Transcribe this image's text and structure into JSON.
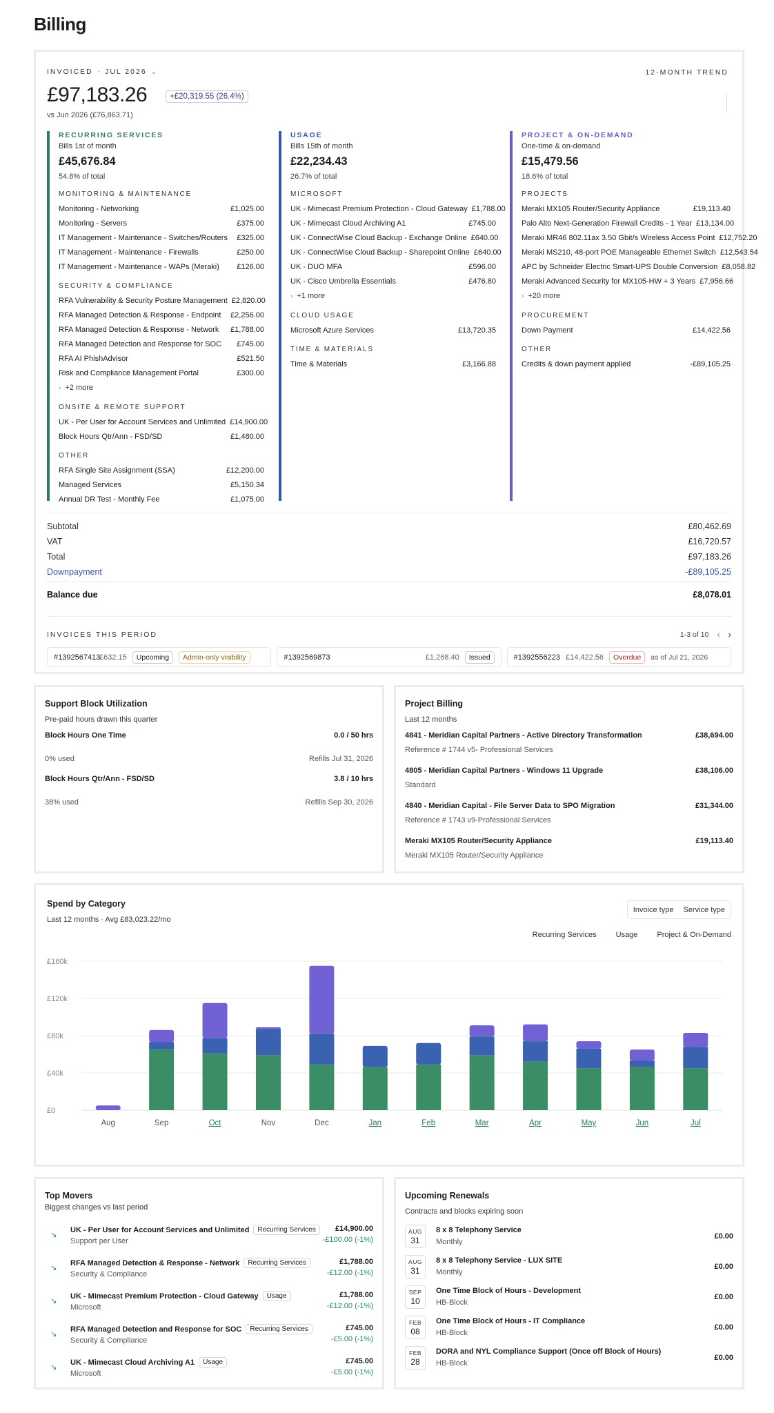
{
  "page_title": "Billing",
  "invoiced": {
    "label": "INVOICED",
    "period": "JUL 2026",
    "trend_label": "12-MONTH TREND",
    "amount": "£97,183.26",
    "delta": "+£20,319.55 (26.4%)",
    "vs": "vs Jun 2026 (£76,863.71)"
  },
  "columns": [
    {
      "title": "RECURRING SERVICES",
      "color": "#2e7d5b",
      "sub": "Bills 1st of month",
      "amount": "£45,676.84",
      "pct": "54.8% of total",
      "sections": [
        {
          "name": "MONITORING & MAINTENANCE",
          "items": [
            [
              "Monitoring - Networking",
              "£1,025.00"
            ],
            [
              "Monitoring - Servers",
              "£375.00"
            ],
            [
              "IT Management - Maintenance - Switches/Routers",
              "£325.00"
            ],
            [
              "IT Management - Maintenance - Firewalls",
              "£250.00"
            ],
            [
              "IT Management - Maintenance - WAPs (Meraki)",
              "£126.00"
            ]
          ]
        },
        {
          "name": "SECURITY & COMPLIANCE",
          "items": [
            [
              "RFA Vulnerability & Security Posture Management",
              "£2,820.00"
            ],
            [
              "RFA Managed Detection & Response - Endpoint",
              "£2,256.00"
            ],
            [
              "RFA Managed Detection & Response - Network",
              "£1,788.00"
            ],
            [
              "RFA Managed Detection and Response for SOC",
              "£745.00"
            ],
            [
              "RFA AI PhishAdvisor",
              "£521.50"
            ],
            [
              "Risk and Compliance Management Portal",
              "£300.00"
            ]
          ],
          "more": "+2 more"
        },
        {
          "name": "ONSITE & REMOTE SUPPORT",
          "items": [
            [
              "UK - Per User for Account Services and Unlimited",
              "£14,900.00"
            ],
            [
              "Block Hours Qtr/Ann - FSD/SD",
              "£1,480.00"
            ]
          ]
        },
        {
          "name": "OTHER",
          "items": [
            [
              "RFA Single Site Assignment (SSA)",
              "£12,200.00"
            ],
            [
              "Managed Services",
              "£5,150.34"
            ],
            [
              "Annual DR Test - Monthly Fee",
              "£1,075.00"
            ]
          ]
        }
      ]
    },
    {
      "title": "USAGE",
      "color": "#3257a8",
      "sub": "Bills 15th of month",
      "amount": "£22,234.43",
      "pct": "26.7% of total",
      "sections": [
        {
          "name": "MICROSOFT",
          "items": [
            [
              "UK - Mimecast Premium Protection - Cloud Gateway",
              "£1,788.00"
            ],
            [
              "UK - Mimecast Cloud Archiving A1",
              "£745.00"
            ],
            [
              "UK - ConnectWise Cloud Backup - Exchange Online",
              "£640.00"
            ],
            [
              "UK - ConnectWise Cloud Backup - Sharepoint Online",
              "£640.00"
            ],
            [
              "UK - DUO MFA",
              "£596.00"
            ],
            [
              "UK - Cisco Umbrella Essentials",
              "£476.80"
            ]
          ],
          "more": "+1 more"
        },
        {
          "name": "CLOUD USAGE",
          "items": [
            [
              "Microsoft Azure Services",
              "£13,720.35"
            ]
          ]
        },
        {
          "name": "TIME & MATERIALS",
          "items": [
            [
              "Time & Materials",
              "£3,166.88"
            ]
          ]
        }
      ]
    },
    {
      "title": "PROJECT & ON-DEMAND",
      "color": "#6a5acd",
      "sub": "One-time & on-demand",
      "amount": "£15,479.56",
      "pct": "18.6% of total",
      "sections": [
        {
          "name": "PROJECTS",
          "items": [
            [
              "Meraki MX105 Router/Security Appliance",
              "£19,113.40"
            ],
            [
              "Palo Alto Next-Generation Firewall Credits - 1 Year",
              "£13,134.00"
            ],
            [
              "Meraki MR46 802.11ax 3.50 Gbit/s Wireless Access Point",
              "£12,752.20"
            ],
            [
              "Meraki MS210, 48-port POE Manageable Ethernet Switch",
              "£12,543.54"
            ],
            [
              "APC by Schneider Electric Smart-UPS Double Conversion",
              "£8,058.82"
            ],
            [
              "Meraki Advanced Security for MX105-HW + 3 Years",
              "£7,956.66"
            ]
          ],
          "more": "+20 more"
        },
        {
          "name": "PROCUREMENT",
          "items": [
            [
              "Down Payment",
              "£14,422.56"
            ]
          ]
        },
        {
          "name": "OTHER",
          "items": [
            [
              "Credits & down payment applied",
              "-£89,105.25"
            ]
          ]
        }
      ]
    }
  ],
  "totals": {
    "subtotal_label": "Subtotal",
    "subtotal": "£80,462.69",
    "vat_label": "VAT",
    "vat": "£16,720.57",
    "total_label": "Total",
    "total": "£97,183.26",
    "down_label": "Downpayment",
    "down": "-£89,105.25",
    "balance_label": "Balance due",
    "balance": "£8,078.01"
  },
  "invoices": {
    "title": "INVOICES THIS PERIOD",
    "pager": "1-3 of 10",
    "items": [
      {
        "num": "#1392567413",
        "amount": "£632.15",
        "status": "Upcoming",
        "status_kind": "plain",
        "extra": "Admin-only visibility",
        "extra_kind": "amber"
      },
      {
        "num": "#1392569873",
        "amount": "£1,268.40",
        "status": "Issued",
        "status_kind": "plain",
        "extra": "",
        "extra_kind": ""
      },
      {
        "num": "#1392556223",
        "amount": "£14,422.56",
        "status": "Overdue",
        "status_kind": "red",
        "extra": "as of Jul 21, 2026",
        "extra_kind": "muted"
      }
    ]
  },
  "support": {
    "title": "Support Block Utilization",
    "sub": "Pre-paid hours drawn this quarter",
    "blocks": [
      {
        "name": "Block Hours One Time",
        "hours": "0.0 / 50 hrs",
        "used": "0% used",
        "refill": "Refills Jul 31, 2026"
      },
      {
        "name": "Block Hours Qtr/Ann - FSD/SD",
        "hours": "3.8 / 10 hrs",
        "used": "38% used",
        "refill": "Refills Sep 30, 2026"
      }
    ]
  },
  "project_billing": {
    "title": "Project Billing",
    "sub": "Last 12 months",
    "items": [
      {
        "name": "4841 - Meridian Capital Partners - Active Directory Transformation",
        "amount": "£38,694.00",
        "ref": "Reference # 1744 v5- Professional Services"
      },
      {
        "name": "4805 - Meridian Capital Partners - Windows 11 Upgrade",
        "amount": "£38,106.00",
        "ref": "Standard"
      },
      {
        "name": "4840 - Meridian Capital - File Server Data to SPO Migration",
        "amount": "£31,344.00",
        "ref": "Reference # 1743 v9-Professional Services"
      },
      {
        "name": "Meraki MX105 Router/Security Appliance",
        "amount": "£19,113.40",
        "ref": "Meraki MX105 Router/Security Appliance"
      }
    ]
  },
  "spend": {
    "title": "Spend by Category",
    "sub": "Last 12 months · Avg £83,023.22/mo",
    "toggle": [
      "Invoice type",
      "Service type"
    ],
    "legend": [
      "Recurring Services",
      "Usage",
      "Project & On-Demand"
    ]
  },
  "chart_data": {
    "type": "bar",
    "stacked": true,
    "categories": [
      "Aug",
      "Sep",
      "Oct",
      "Nov",
      "Dec",
      "Jan",
      "Feb",
      "Mar",
      "Apr",
      "May",
      "Jun",
      "Jul"
    ],
    "highlight_categories": [
      "Oct",
      "Jan",
      "Feb",
      "Mar",
      "Apr",
      "May",
      "Jun",
      "Jul"
    ],
    "series": [
      {
        "name": "Recurring Services",
        "color": "#3a8d64",
        "values": [
          0,
          65000,
          61000,
          59000,
          49000,
          46000,
          49000,
          59000,
          52000,
          45000,
          46000,
          45000
        ]
      },
      {
        "name": "Usage",
        "color": "#3a62b0",
        "values": [
          0,
          8000,
          16000,
          28000,
          33000,
          23000,
          23000,
          20000,
          22000,
          21000,
          7000,
          23000
        ]
      },
      {
        "name": "Project & On-Demand",
        "color": "#7062d4",
        "values": [
          5000,
          13000,
          38000,
          2000,
          73000,
          0,
          0,
          12000,
          18000,
          8000,
          12000,
          15000
        ]
      }
    ],
    "yticks": [
      "£0",
      "£40k",
      "£80k",
      "£120k",
      "£160k"
    ],
    "ylim": [
      0,
      160000
    ],
    "grid": true
  },
  "movers": {
    "title": "Top Movers",
    "sub": "Biggest changes vs last period",
    "items": [
      {
        "name": "UK - Per User for Account Services and Unlimited",
        "tag": "Recurring Services",
        "sub": "Support per User",
        "amount": "£14,900.00",
        "delta": "-£100.00 (-1%)"
      },
      {
        "name": "RFA Managed Detection & Response - Network",
        "tag": "Recurring Services",
        "sub": "Security & Compliance",
        "amount": "£1,788.00",
        "delta": "-£12.00 (-1%)"
      },
      {
        "name": "UK - Mimecast Premium Protection - Cloud Gateway",
        "tag": "Usage",
        "sub": "Microsoft",
        "amount": "£1,788.00",
        "delta": "-£12.00 (-1%)"
      },
      {
        "name": "RFA Managed Detection and Response for SOC",
        "tag": "Recurring Services",
        "sub": "Security & Compliance",
        "amount": "£745.00",
        "delta": "-£5.00 (-1%)"
      },
      {
        "name": "UK - Mimecast Cloud Archiving A1",
        "tag": "Usage",
        "sub": "Microsoft",
        "amount": "£745.00",
        "delta": "-£5.00 (-1%)"
      }
    ]
  },
  "renewals": {
    "title": "Upcoming Renewals",
    "sub": "Contracts and blocks expiring soon",
    "items": [
      {
        "mon": "AUG",
        "day": "31",
        "name": "8 x 8 Telephony Service",
        "sub": "Monthly",
        "amount": "£0.00"
      },
      {
        "mon": "AUG",
        "day": "31",
        "name": "8 x 8 Telephony Service - LUX SITE",
        "sub": "Monthly",
        "amount": "£0.00"
      },
      {
        "mon": "SEP",
        "day": "10",
        "name": "One Time Block of Hours - Development",
        "sub": "HB-Block",
        "amount": "£0.00"
      },
      {
        "mon": "FEB",
        "day": "08",
        "name": "One Time Block of Hours - IT Compliance",
        "sub": "HB-Block",
        "amount": "£0.00"
      },
      {
        "mon": "FEB",
        "day": "28",
        "name": "DORA and NYL Compliance Support (Once off Block of Hours)",
        "sub": "HB-Block",
        "amount": "£0.00"
      }
    ]
  }
}
